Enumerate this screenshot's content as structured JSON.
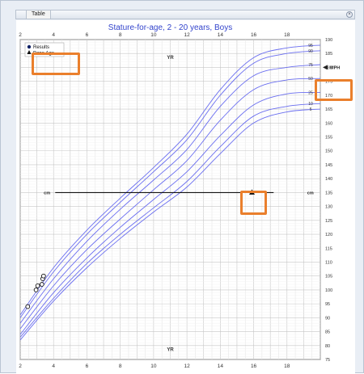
{
  "tab": {
    "label": "Table",
    "close_icon": "close-circle-icon"
  },
  "chart_data": {
    "type": "line",
    "title": "Stature-for-age, 2 - 20 years, Boys",
    "x_unit_label": "YR",
    "y_unit_label": "cm",
    "x_ticks": [
      2,
      4,
      6,
      8,
      10,
      12,
      14,
      16,
      18
    ],
    "xlim": [
      2,
      20
    ],
    "ylim": [
      75,
      190
    ],
    "y_ticks": [
      75,
      80,
      85,
      90,
      95,
      100,
      105,
      110,
      115,
      120,
      125,
      130,
      135,
      140,
      145,
      150,
      155,
      160,
      165,
      170,
      175,
      180,
      185,
      190
    ],
    "grid": true,
    "legend": {
      "position": "top-left",
      "entries": [
        {
          "label": "Results",
          "marker": "circle"
        },
        {
          "label": "Bone Age",
          "marker": "triangle"
        }
      ]
    },
    "percentile_labels": [
      "95",
      "90",
      "75",
      "50",
      "25",
      "10",
      "5"
    ],
    "series": [
      {
        "name": "95",
        "x": [
          2,
          4,
          6,
          8,
          10,
          12,
          14,
          16,
          18,
          20
        ],
        "values": [
          91,
          108,
          121.5,
          133,
          144,
          156,
          172,
          183.5,
          187,
          188
        ]
      },
      {
        "name": "90",
        "x": [
          2,
          4,
          6,
          8,
          10,
          12,
          14,
          16,
          18,
          20
        ],
        "values": [
          90,
          106.5,
          120,
          131.5,
          142.5,
          154,
          170,
          181.5,
          185,
          186
        ]
      },
      {
        "name": "75",
        "x": [
          2,
          4,
          6,
          8,
          10,
          12,
          14,
          16,
          18,
          20
        ],
        "values": [
          88,
          104,
          117.5,
          129,
          139.5,
          150.5,
          166,
          177,
          180,
          181
        ]
      },
      {
        "name": "50",
        "x": [
          2,
          4,
          6,
          8,
          10,
          12,
          14,
          16,
          18,
          20
        ],
        "values": [
          86,
          101.5,
          114.5,
          125.5,
          136,
          146.5,
          161,
          172,
          175.5,
          176
        ]
      },
      {
        "name": "25",
        "x": [
          2,
          4,
          6,
          8,
          10,
          12,
          14,
          16,
          18,
          20
        ],
        "values": [
          84,
          99,
          111.5,
          122.5,
          132.5,
          142.5,
          155.5,
          166.5,
          170.5,
          171
        ]
      },
      {
        "name": "10",
        "x": [
          2,
          4,
          6,
          8,
          10,
          12,
          14,
          16,
          18,
          20
        ],
        "values": [
          83,
          97,
          109.5,
          120,
          129.5,
          139,
          151.5,
          162.5,
          166,
          167
        ]
      },
      {
        "name": "5",
        "x": [
          2,
          4,
          6,
          8,
          10,
          12,
          14,
          16,
          18,
          20
        ],
        "values": [
          82,
          96,
          108,
          118.5,
          128,
          137,
          149,
          160,
          164,
          165
        ]
      }
    ],
    "results": [
      {
        "x": 2.45,
        "y": 94
      },
      {
        "x": 2.95,
        "y": 100
      },
      {
        "x": 3.05,
        "y": 101.5
      },
      {
        "x": 3.3,
        "y": 102
      },
      {
        "x": 3.35,
        "y": 104
      },
      {
        "x": 3.4,
        "y": 105
      }
    ],
    "bone_age": {
      "x": 15.9,
      "y": 135
    },
    "reference_line": {
      "y": 135,
      "label_left": "cm",
      "label_right": "cm"
    },
    "mph": {
      "label": "MPH",
      "y": 180
    }
  }
}
